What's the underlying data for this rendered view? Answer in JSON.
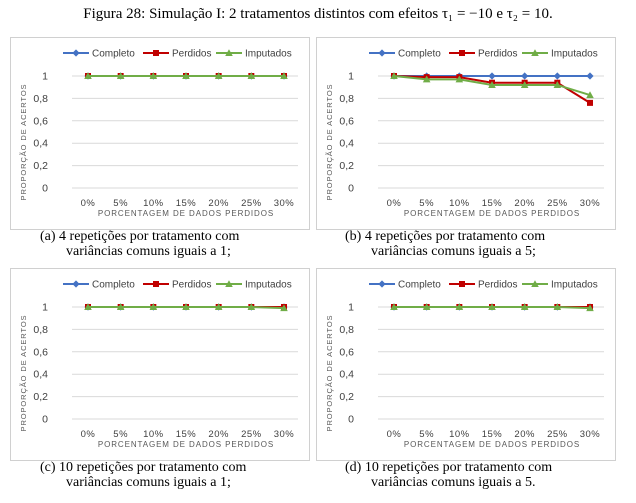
{
  "figure": {
    "title": "Figura 28: Simulação I: 2 tratamentos distintos com efeitos τ₁ = −10 e τ₂ = 10."
  },
  "colors": {
    "completo": "#4472C4",
    "perdidos": "#C00000",
    "imputados": "#70AD47",
    "grid": "#d9d9d9"
  },
  "chart_data": [
    {
      "type": "line",
      "panel_label": "(a)",
      "caption_line1": "(a) 4 repetições por tratamento com",
      "caption_line2": "variâncias comuns iguais a 1;",
      "xlabel": "PORCENTAGEM DE DADOS PERDIDOS",
      "ylabel": "PROPORÇÃO DE ACERTOS",
      "categories": [
        "0%",
        "5%",
        "10%",
        "15%",
        "20%",
        "25%",
        "30%"
      ],
      "yticks": [
        "0",
        "0,2",
        "0,4",
        "0,6",
        "0,8",
        "1"
      ],
      "ylim": [
        0,
        1
      ],
      "legend": "top",
      "grid": "horizontal",
      "series": [
        {
          "name": "Completo",
          "values": [
            1,
            1,
            1,
            1,
            1,
            1,
            1
          ]
        },
        {
          "name": "Perdidos",
          "values": [
            1,
            1,
            1,
            1,
            1,
            1,
            1
          ]
        },
        {
          "name": "Imputados",
          "values": [
            1,
            1,
            1,
            1,
            1,
            1,
            1
          ]
        }
      ]
    },
    {
      "type": "line",
      "panel_label": "(b)",
      "caption_line1": "(b) 4 repetições por tratamento com",
      "caption_line2": "variâncias comuns iguais a 5;",
      "xlabel": "PORCENTAGEM DE DADOS PERDIDOS",
      "ylabel": "PROPORÇÃO DE ACERTOS",
      "categories": [
        "0%",
        "5%",
        "10%",
        "15%",
        "20%",
        "25%",
        "30%"
      ],
      "yticks": [
        "0",
        "0,2",
        "0,4",
        "0,6",
        "0,8",
        "1"
      ],
      "ylim": [
        0,
        1
      ],
      "legend": "top",
      "grid": "horizontal",
      "series": [
        {
          "name": "Completo",
          "values": [
            1,
            1,
            1,
            1,
            1,
            1,
            1
          ]
        },
        {
          "name": "Perdidos",
          "values": [
            1,
            0.99,
            0.99,
            0.94,
            0.94,
            0.94,
            0.76
          ]
        },
        {
          "name": "Imputados",
          "values": [
            1,
            0.97,
            0.97,
            0.92,
            0.92,
            0.92,
            0.83
          ]
        }
      ]
    },
    {
      "type": "line",
      "panel_label": "(c)",
      "caption_line1": "(c) 10 repetições por tratamento com",
      "caption_line2": "variâncias comuns iguais a 1;",
      "xlabel": "PORCENTAGEM DE DADOS PERDIDOS",
      "ylabel": "PROPORÇÃO DE ACERTOS",
      "categories": [
        "0%",
        "5%",
        "10%",
        "15%",
        "20%",
        "25%",
        "30%"
      ],
      "yticks": [
        "0",
        "0,2",
        "0,4",
        "0,6",
        "0,8",
        "1"
      ],
      "ylim": [
        0,
        1
      ],
      "legend": "top",
      "grid": "horizontal",
      "series": [
        {
          "name": "Completo",
          "values": [
            1,
            1,
            1,
            1,
            1,
            1,
            1
          ]
        },
        {
          "name": "Perdidos",
          "values": [
            1,
            1,
            1,
            1,
            1,
            1,
            1
          ]
        },
        {
          "name": "Imputados",
          "values": [
            1,
            1,
            1,
            1,
            1,
            1,
            0.99
          ]
        }
      ]
    },
    {
      "type": "line",
      "panel_label": "(d)",
      "caption_line1": "(d) 10 repetições por tratamento com",
      "caption_line2": "variâncias comuns iguais a 5.",
      "xlabel": "PORCENTAGEM DE DADOS PERDIDOS",
      "ylabel": "PROPORÇÃO DE ACERTOS",
      "categories": [
        "0%",
        "5%",
        "10%",
        "15%",
        "20%",
        "25%",
        "30%"
      ],
      "yticks": [
        "0",
        "0,2",
        "0,4",
        "0,6",
        "0,8",
        "1"
      ],
      "ylim": [
        0,
        1
      ],
      "legend": "top",
      "grid": "horizontal",
      "series": [
        {
          "name": "Completo",
          "values": [
            1,
            1,
            1,
            1,
            1,
            1,
            1
          ]
        },
        {
          "name": "Perdidos",
          "values": [
            1,
            1,
            1,
            1,
            1,
            1,
            1
          ]
        },
        {
          "name": "Imputados",
          "values": [
            1,
            1,
            1,
            1,
            1,
            1,
            0.99
          ]
        }
      ]
    }
  ]
}
